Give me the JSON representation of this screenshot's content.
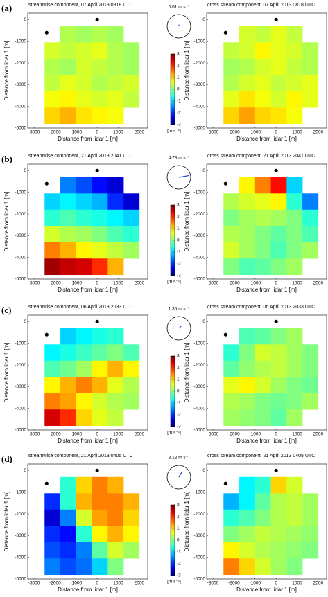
{
  "rows": [
    {
      "label": "(a)",
      "wind": {
        "speed": 0.61,
        "speed_label": "0.61 m s⁻¹",
        "direction_deg": 90
      },
      "colorbar": {
        "lim": [
          -3,
          3
        ],
        "ticks": [
          -3,
          -2,
          -1,
          0,
          1,
          2,
          3
        ],
        "label": "[m s⁻¹]"
      }
    },
    {
      "label": "(b)",
      "wind": {
        "speed": 4.78,
        "speed_label": "4.78 m s⁻¹",
        "direction_deg": 10
      },
      "colorbar": {
        "lim": [
          -3,
          3
        ],
        "ticks": [
          -3,
          -2,
          -1,
          0,
          1,
          2,
          3
        ],
        "label": "[m s⁻¹]"
      }
    },
    {
      "label": "(c)",
      "wind": {
        "speed": 1.35,
        "speed_label": "1.35 m s⁻¹",
        "direction_deg": 45
      },
      "colorbar": {
        "lim": [
          -3,
          3
        ],
        "ticks": [
          -3,
          -2,
          -1,
          0,
          1,
          2,
          3
        ],
        "label": "[m s⁻¹]"
      }
    },
    {
      "label": "(d)",
      "wind": {
        "speed": 3.12,
        "speed_label": "3.12 m s⁻¹",
        "direction_deg": 60
      },
      "colorbar": {
        "lim": [
          -3,
          3
        ],
        "ticks": [
          -3,
          -2,
          -1,
          0,
          1,
          2,
          3
        ],
        "label": "[m s⁻¹]"
      }
    }
  ],
  "chart_data": [
    {
      "type": "heatmap",
      "title": "streamwise component, 07 April 2013 0818 UTC",
      "x_label": "Distance from lidar 1 [m]",
      "y_label": "Distance from lidar 1 [m]",
      "xlim": [
        -3300,
        2400
      ],
      "ylim": [
        -5000,
        300
      ],
      "xticks": [
        -3000,
        -2000,
        -1000,
        0,
        1000,
        2000
      ],
      "yticks": [
        0,
        -1000,
        -2000,
        -3000,
        -4000,
        -5000
      ],
      "x_edges": [
        -2500,
        -1750,
        -1000,
        -250,
        500,
        1250,
        2000
      ],
      "y_edges": [
        -300,
        -1050,
        -1800,
        -2550,
        -3300,
        -4050,
        -4800
      ],
      "values": [
        [
          null,
          0.3,
          0.2,
          0.3,
          0.2,
          null
        ],
        [
          0.5,
          0.4,
          0.5,
          0.6,
          0.3,
          0.2
        ],
        [
          0.3,
          0.2,
          0.5,
          0.4,
          0.3,
          0.2
        ],
        [
          0.4,
          0.6,
          0.5,
          0.3,
          0.4,
          0.5
        ],
        [
          0.7,
          0.8,
          0.6,
          0.5,
          0.6,
          0.4
        ],
        [
          1.0,
          1.2,
          0.9,
          0.8,
          0.7,
          null
        ]
      ],
      "lidar_x": [
        -2400,
        0
      ],
      "lidar_y": [
        -600,
        0
      ]
    },
    {
      "type": "heatmap",
      "title": "cross stream component, 07 April 2013 0818 UTC",
      "x_label": "Distance from lidar 1 [m]",
      "y_label": "Distance from lidar 1 [m]",
      "xlim": [
        -3300,
        2400
      ],
      "ylim": [
        -5000,
        300
      ],
      "xticks": [
        -3000,
        -2000,
        -1000,
        0,
        1000,
        2000
      ],
      "yticks": [
        0,
        -1000,
        -2000,
        -3000,
        -4000,
        -5000
      ],
      "x_edges": [
        -2500,
        -1750,
        -1000,
        -250,
        500,
        1250,
        2000
      ],
      "y_edges": [
        -300,
        -1050,
        -1800,
        -2550,
        -3300,
        -4050,
        -4800
      ],
      "values": [
        [
          null,
          0.5,
          0.4,
          0.6,
          0.4,
          null
        ],
        [
          0.4,
          0.5,
          0.8,
          0.6,
          0.5,
          0.3
        ],
        [
          0.2,
          0.3,
          0.5,
          0.6,
          0.4,
          0.3
        ],
        [
          0.3,
          0.5,
          0.6,
          0.4,
          0.5,
          0.6
        ],
        [
          0.6,
          0.9,
          0.7,
          0.5,
          0.8,
          0.6
        ],
        [
          1.0,
          1.3,
          1.0,
          0.9,
          0.7,
          null
        ]
      ],
      "lidar_x": [
        -2400,
        0
      ],
      "lidar_y": [
        -600,
        0
      ]
    },
    {
      "type": "heatmap",
      "title": "streamwise component, 21 April 2013 2041 UTC",
      "x_label": "Distance from lidar 1 [m]",
      "y_label": "Distance from lidar 1 [m]",
      "xlim": [
        -3300,
        2400
      ],
      "ylim": [
        -5000,
        300
      ],
      "xticks": [
        -3000,
        -2000,
        -1000,
        0,
        1000,
        2000
      ],
      "yticks": [
        0,
        -1000,
        -2000,
        -3000,
        -4000,
        -5000
      ],
      "x_edges": [
        -2500,
        -1750,
        -1000,
        -250,
        500,
        1250,
        2000
      ],
      "y_edges": [
        -300,
        -1050,
        -1800,
        -2550,
        -3300,
        -4050,
        -4800
      ],
      "values": [
        [
          null,
          -1.5,
          -1.8,
          -2.2,
          -2.5,
          null
        ],
        [
          -1.0,
          -0.8,
          -1.0,
          -1.2,
          -2.0,
          -2.5
        ],
        [
          -0.5,
          -0.3,
          -0.5,
          -0.6,
          -0.8,
          -1.0
        ],
        [
          0.5,
          0.3,
          0.2,
          0.0,
          -0.3,
          -0.5
        ],
        [
          1.5,
          1.2,
          0.8,
          0.6,
          0.4,
          0.2
        ],
        [
          2.8,
          2.6,
          2.5,
          2.0,
          1.2,
          null
        ]
      ],
      "lidar_x": [
        -2400,
        0
      ],
      "lidar_y": [
        -600,
        0
      ]
    },
    {
      "type": "heatmap",
      "title": "cross stream component, 21 April 2013 2041 UTC",
      "x_label": "Distance from lidar 1 [m]",
      "y_label": "Distance from lidar 1 [m]",
      "xlim": [
        -3300,
        2400
      ],
      "ylim": [
        -5000,
        300
      ],
      "xticks": [
        -3000,
        -2000,
        -1000,
        0,
        1000,
        2000
      ],
      "yticks": [
        0,
        -1000,
        -2000,
        -3000,
        -4000,
        -5000
      ],
      "x_edges": [
        -2500,
        -1750,
        -1000,
        -250,
        500,
        1250,
        2000
      ],
      "y_edges": [
        -300,
        -1050,
        -1800,
        -2550,
        -3300,
        -4050,
        -4800
      ],
      "values": [
        [
          null,
          0.8,
          1.5,
          2.2,
          -1.0,
          null
        ],
        [
          0.3,
          0.5,
          0.6,
          0.8,
          -0.5,
          -1.5
        ],
        [
          0.0,
          0.2,
          0.3,
          0.2,
          0.0,
          -0.5
        ],
        [
          0.3,
          0.2,
          0.0,
          -0.2,
          0.0,
          -0.3
        ],
        [
          0.5,
          0.2,
          0.0,
          -0.3,
          0.0,
          0.2
        ],
        [
          0.0,
          -0.3,
          -0.2,
          0.0,
          0.2,
          null
        ]
      ],
      "lidar_x": [
        -2400,
        0
      ],
      "lidar_y": [
        -600,
        0
      ]
    },
    {
      "type": "heatmap",
      "title": "streamwise component, 06 April 2013 2033 UTC",
      "x_label": "Distance from lidar 1 [m]",
      "y_label": "Distance from lidar 1 [m]",
      "xlim": [
        -3300,
        2400
      ],
      "ylim": [
        -5000,
        300
      ],
      "xticks": [
        -3000,
        -2000,
        -1000,
        0,
        1000,
        2000
      ],
      "yticks": [
        0,
        -1000,
        -2000,
        -3000,
        -4000,
        -5000
      ],
      "x_edges": [
        -2500,
        -1750,
        -1000,
        -250,
        500,
        1250,
        2000
      ],
      "y_edges": [
        -300,
        -1050,
        -1800,
        -2550,
        -3300,
        -4050,
        -4800
      ],
      "values": [
        [
          null,
          -1.0,
          -0.8,
          -0.6,
          -0.5,
          null
        ],
        [
          -0.8,
          -0.6,
          -0.4,
          -0.2,
          0.0,
          -0.3
        ],
        [
          -0.3,
          -0.1,
          0.2,
          0.8,
          1.2,
          0.8
        ],
        [
          0.8,
          1.2,
          1.5,
          1.2,
          0.6,
          0.3
        ],
        [
          1.5,
          1.3,
          0.8,
          0.5,
          0.3,
          0.2
        ],
        [
          2.5,
          2.0,
          1.0,
          0.6,
          0.4,
          null
        ]
      ],
      "lidar_x": [
        -2400,
        0
      ],
      "lidar_y": [
        -600,
        0
      ]
    },
    {
      "type": "heatmap",
      "title": "cross stream component, 06 April 2013 2033 UTC",
      "x_label": "Distance from lidar 1 [m]",
      "y_label": "Distance from lidar 1 [m]",
      "xlim": [
        -3300,
        2400
      ],
      "ylim": [
        -5000,
        300
      ],
      "xticks": [
        -3000,
        -2000,
        -1000,
        0,
        1000,
        2000
      ],
      "yticks": [
        0,
        -1000,
        -2000,
        -3000,
        -4000,
        -5000
      ],
      "x_edges": [
        -2500,
        -1750,
        -1000,
        -250,
        500,
        1250,
        2000
      ],
      "y_edges": [
        -300,
        -1050,
        -1800,
        -2550,
        -3300,
        -4050,
        -4800
      ],
      "values": [
        [
          null,
          -0.3,
          -0.2,
          0.0,
          0.2,
          null
        ],
        [
          -0.5,
          0.0,
          0.5,
          0.4,
          0.2,
          0.0
        ],
        [
          -0.2,
          0.1,
          0.3,
          0.4,
          0.2,
          0.0
        ],
        [
          0.6,
          0.8,
          0.5,
          0.2,
          0.0,
          -0.1
        ],
        [
          0.3,
          0.2,
          0.0,
          -0.1,
          0.0,
          0.2
        ],
        [
          0.2,
          0.1,
          0.0,
          -0.2,
          0.2,
          null
        ]
      ],
      "lidar_x": [
        -2400,
        0
      ],
      "lidar_y": [
        -600,
        0
      ]
    },
    {
      "type": "heatmap",
      "title": "streamwise component, 21 April 2013 0405 UTC",
      "x_label": "Distance from lidar 1 [m]",
      "y_label": "Distance from lidar 1 [m]",
      "xlim": [
        -3300,
        2400
      ],
      "ylim": [
        -5000,
        300
      ],
      "xticks": [
        -3000,
        -2000,
        -1000,
        0,
        1000,
        2000
      ],
      "yticks": [
        0,
        -1000,
        -2000,
        -3000,
        -4000,
        -5000
      ],
      "x_edges": [
        -2500,
        -1750,
        -1000,
        -250,
        500,
        1250,
        2000
      ],
      "y_edges": [
        -300,
        -1050,
        -1800,
        -2550,
        -3300,
        -4050,
        -4800
      ],
      "values": [
        [
          null,
          -0.5,
          1.0,
          1.5,
          1.2,
          null
        ],
        [
          -2.0,
          -0.5,
          1.2,
          1.5,
          1.5,
          1.2
        ],
        [
          -2.5,
          -1.5,
          0.5,
          1.3,
          1.5,
          1.0
        ],
        [
          -2.0,
          -2.2,
          -0.5,
          0.8,
          1.2,
          0.8
        ],
        [
          -1.8,
          -2.0,
          -1.5,
          -0.2,
          0.5,
          0.2
        ],
        [
          -1.5,
          -1.8,
          -1.6,
          -1.0,
          0.0,
          null
        ]
      ],
      "lidar_x": [
        -2400,
        0
      ],
      "lidar_y": [
        -600,
        0
      ]
    },
    {
      "type": "heatmap",
      "title": "cross stream component, 21 April 2013 0405 UTC",
      "x_label": "Distance from lidar 1 [m]",
      "y_label": "Distance from lidar 1 [m]",
      "xlim": [
        -3300,
        2400
      ],
      "ylim": [
        -5000,
        300
      ],
      "xticks": [
        -3000,
        -2000,
        -1000,
        0,
        1000,
        2000
      ],
      "yticks": [
        0,
        -1000,
        -2000,
        -3000,
        -4000,
        -5000
      ],
      "x_edges": [
        -2500,
        -1750,
        -1000,
        -250,
        500,
        1250,
        2000
      ],
      "y_edges": [
        -300,
        -1050,
        -1800,
        -2550,
        -3300,
        -4050,
        -4800
      ],
      "values": [
        [
          null,
          -0.8,
          -0.5,
          1.0,
          0.5,
          null
        ],
        [
          -1.2,
          -0.8,
          -0.2,
          0.3,
          0.4,
          0.2
        ],
        [
          -0.5,
          -0.3,
          0.0,
          0.3,
          0.4,
          0.2
        ],
        [
          0.0,
          0.2,
          0.4,
          0.3,
          0.2,
          0.1
        ],
        [
          0.8,
          0.5,
          0.3,
          0.2,
          0.1,
          0.0
        ],
        [
          1.5,
          1.0,
          0.5,
          0.2,
          0.0,
          null
        ]
      ],
      "lidar_x": [
        -2400,
        0
      ],
      "lidar_y": [
        -600,
        0
      ]
    }
  ]
}
